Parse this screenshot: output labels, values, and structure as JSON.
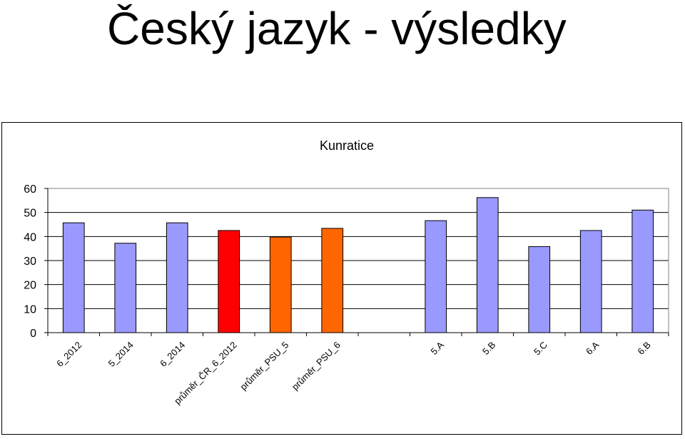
{
  "slide": {
    "title": "Český jazyk - výsledky"
  },
  "chart_data": {
    "type": "bar",
    "title": "Kunratice",
    "xlabel": "",
    "ylabel": "",
    "ylim": [
      0,
      60
    ],
    "yticks": [
      0,
      10,
      20,
      30,
      40,
      50,
      60
    ],
    "grid": true,
    "legend": "none",
    "categories": [
      "6_2012",
      "5_2014",
      "6_2014",
      "průměr_ČR_6_2012",
      "průměr_PSU_5",
      "průměr_PSU_6",
      "",
      "5.A",
      "5.B",
      "5.C",
      "6.A",
      "6.B"
    ],
    "values": [
      45.7,
      37.2,
      45.7,
      42.5,
      39.8,
      43.4,
      null,
      46.6,
      56.2,
      35.8,
      42.5,
      51.0
    ],
    "bar_colors": [
      "#9999ff",
      "#9999ff",
      "#9999ff",
      "#ff0000",
      "#ff6600",
      "#ff6600",
      null,
      "#9999ff",
      "#9999ff",
      "#9999ff",
      "#9999ff",
      "#9999ff"
    ]
  }
}
